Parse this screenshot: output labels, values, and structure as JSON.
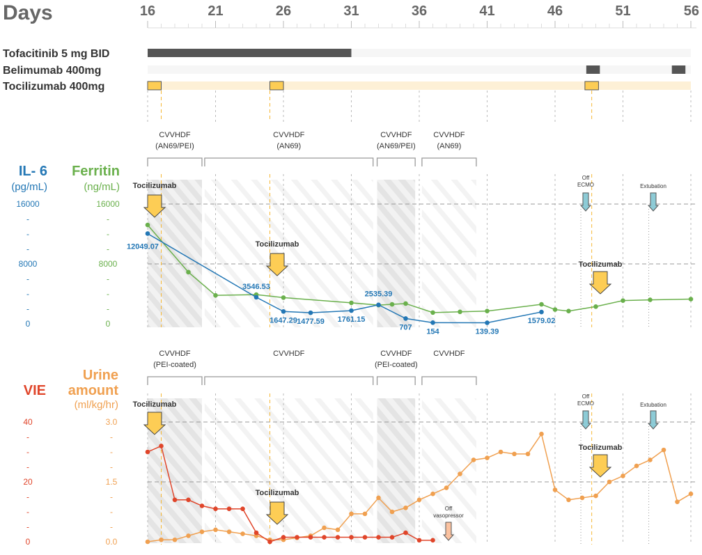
{
  "header": {
    "days_label": "Days",
    "day_ticks": [
      "16",
      "21",
      "26",
      "31",
      "36",
      "41",
      "46",
      "51",
      "56"
    ]
  },
  "drugs": [
    {
      "label": "Tofacitinib 5 mg BID",
      "color": "#555555",
      "bars": [
        [
          16,
          31
        ]
      ]
    },
    {
      "label": "Belimumab 400mg",
      "color": "#555555",
      "bars": [
        [
          48.3,
          49.3
        ],
        [
          54.6,
          55.6
        ]
      ]
    },
    {
      "label": "Tocilizumab 400mg",
      "color": "#fdcd55",
      "bars": [
        [
          16,
          17
        ],
        [
          25,
          26
        ],
        [
          48.2,
          49.2
        ]
      ]
    }
  ],
  "top_panel": {
    "therapies": [
      {
        "label1": "CVVHDF",
        "label2": "(AN69/PEI)",
        "start": 16,
        "end": 20
      },
      {
        "label1": "CVVHDF",
        "label2": "(AN69)",
        "start": 20.2,
        "end": 32.6
      },
      {
        "label1": "CVVHDF",
        "label2": "(AN69/PEI)",
        "start": 32.9,
        "end": 35.7
      },
      {
        "label1": "CVVHDF",
        "label2": "(AN69)",
        "start": 36.2,
        "end": 40.2
      }
    ],
    "il6_title": "IL- 6",
    "il6_unit": "(pg/mL)",
    "ferritin_title": "Ferritin",
    "ferritin_unit": "(ng/mL)",
    "il6_ticks": [
      "16000",
      "-",
      "-",
      "-",
      "8000",
      "-",
      "-",
      "-",
      "0"
    ],
    "ferritin_ticks": [
      "16000",
      "-",
      "-",
      "-",
      "8000",
      "-",
      "-",
      "-",
      "0"
    ],
    "il6_color": "#2377b5",
    "ferritin_color": "#6ab04c",
    "annotations": {
      "tocilizumab_1": "Tocilizumab",
      "tocilizumab_2": "Tocilizumab",
      "tocilizumab_3": "Tocilizumab",
      "off_ecmo_1": "Off",
      "off_ecmo_2": "ECMO",
      "extubation": "Extubation"
    }
  },
  "bottom_panel": {
    "therapies": [
      {
        "label1": "CVVHDF",
        "label2": "(PEI-coated)",
        "start": 16,
        "end": 20
      },
      {
        "label1": "CVVHDF",
        "label2": "",
        "start": 20.2,
        "end": 32.6
      },
      {
        "label1": "CVVHDF",
        "label2": "(PEI-coated)",
        "start": 32.9,
        "end": 35.7
      },
      {
        "label1": "CVVHDF",
        "label2": "",
        "start": 36.2,
        "end": 40.2
      }
    ],
    "vie_title": "VIE",
    "urine_title_1": "Urine",
    "urine_title_2": "amount",
    "urine_unit": "(ml/kg/hr)",
    "vie_ticks": [
      "40",
      "-",
      "-",
      "-",
      "20",
      "-",
      "-",
      "-",
      "0"
    ],
    "urine_ticks": [
      "3.0",
      "-",
      "-",
      "-",
      "1.5",
      "-",
      "-",
      "-",
      "0.0"
    ],
    "vie_color": "#e0452a",
    "urine_color": "#f0a050",
    "annotations": {
      "tocilizumab_1": "Tocilizumab",
      "tocilizumab_2": "Tocilizumab",
      "tocilizumab_3": "Tocilizumab",
      "off_vaso_1": "Off",
      "off_vaso_2": "vasopressor",
      "off_ecmo_1": "Off",
      "off_ecmo_2": "ECMO",
      "extubation": "Extubation"
    }
  },
  "chart_data": [
    {
      "type": "line",
      "title": "IL-6 and Ferritin",
      "xlabel": "Days",
      "xlim": [
        16,
        56
      ],
      "series": [
        {
          "name": "IL-6 (pg/mL)",
          "x": [
            16,
            24,
            26,
            28,
            31,
            33,
            35,
            37,
            41,
            45
          ],
          "y": [
            12049.07,
            3546.53,
            1647.29,
            1477.59,
            1761.15,
            2535.39,
            707,
            154,
            139.39,
            1579.02
          ],
          "labels": [
            "12049.07",
            "3546.53",
            "1647.29",
            "1477.59",
            "1761.15",
            "2535.39",
            "707",
            "154",
            "139.39",
            "1579.02"
          ],
          "ylim": [
            0,
            16000
          ]
        },
        {
          "name": "Ferritin (ng/mL)",
          "x": [
            16,
            19,
            21,
            24,
            26,
            31,
            33,
            34,
            35,
            37,
            39,
            41,
            45,
            46,
            47,
            49,
            51,
            53,
            56
          ],
          "y": [
            13200,
            6900,
            3800,
            3900,
            3500,
            2800,
            2500,
            2600,
            2700,
            1500,
            1600,
            1700,
            2600,
            1900,
            1700,
            2300,
            3100,
            3200,
            3300
          ],
          "ylim": [
            0,
            16000
          ]
        }
      ],
      "reference_lines": [
        16000,
        8000
      ]
    },
    {
      "type": "line",
      "title": "VIE and Urine amount",
      "xlabel": "Days",
      "xlim": [
        16,
        56
      ],
      "series": [
        {
          "name": "VIE",
          "x": [
            16,
            17,
            18,
            19,
            20,
            21,
            22,
            23,
            24,
            25,
            26,
            27,
            28,
            29,
            30,
            31,
            32,
            33,
            34,
            35,
            36,
            37
          ],
          "y": [
            30,
            32,
            14,
            14,
            12,
            11,
            11,
            11,
            3,
            0,
            1.5,
            1.5,
            1.5,
            1.5,
            1.5,
            1.5,
            1.5,
            1.5,
            1.5,
            3,
            0.5,
            0.5
          ],
          "ylim": [
            0,
            40
          ]
        },
        {
          "name": "Urine amount (ml/kg/hr)",
          "x": [
            16,
            17,
            18,
            19,
            20,
            21,
            22,
            23,
            24,
            25,
            26,
            27,
            28,
            29,
            30,
            31,
            32,
            33,
            34,
            35,
            36,
            37,
            38,
            39,
            40,
            41,
            42,
            43,
            44,
            45,
            46,
            47,
            48,
            49,
            50,
            51,
            52,
            53,
            54,
            55,
            56
          ],
          "y": [
            0,
            0.05,
            0.05,
            0.15,
            0.25,
            0.3,
            0.25,
            0.2,
            0.15,
            0.05,
            0.05,
            0.1,
            0.15,
            0.35,
            0.3,
            0.7,
            0.7,
            1.1,
            0.75,
            0.85,
            1.05,
            1.2,
            1.35,
            1.7,
            2.05,
            2.1,
            2.25,
            2.2,
            2.2,
            2.7,
            1.3,
            1.05,
            1.1,
            1.15,
            1.5,
            1.65,
            1.9,
            2.05,
            2.3,
            1.0,
            1.2
          ],
          "ylim": [
            0,
            3.0
          ]
        }
      ],
      "reference_lines": [
        3.0,
        1.5
      ]
    }
  ]
}
